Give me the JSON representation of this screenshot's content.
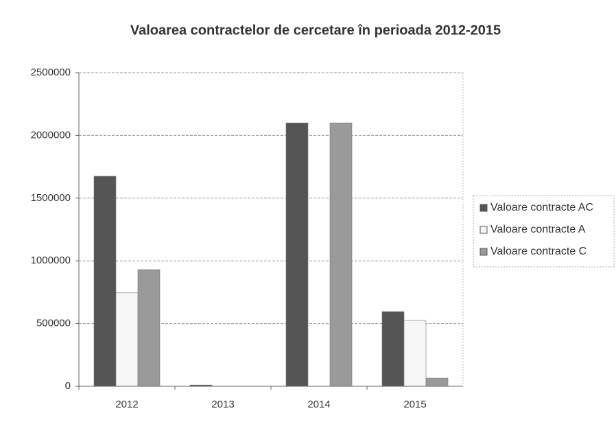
{
  "chart_data": {
    "type": "bar",
    "title": "Valoarea contractelor de cercetare în perioada 2012-2015",
    "categories": [
      "2012",
      "2013",
      "2014",
      "2015"
    ],
    "series": [
      {
        "name": "Valoare contracte AC",
        "color": "#555555",
        "values": [
          1675000,
          10000,
          2100000,
          595000
        ]
      },
      {
        "name": "Valoare contracte A",
        "color": "#f7f7f7",
        "values": [
          745000,
          0,
          0,
          525000
        ]
      },
      {
        "name": "Valoare contracte C",
        "color": "#9a9a9a",
        "values": [
          930000,
          0,
          2100000,
          65000
        ]
      }
    ],
    "ylim": [
      0,
      2500000
    ],
    "yticks": [
      0,
      500000,
      1000000,
      1500000,
      2000000,
      2500000
    ],
    "grid": true,
    "legend": "right"
  }
}
